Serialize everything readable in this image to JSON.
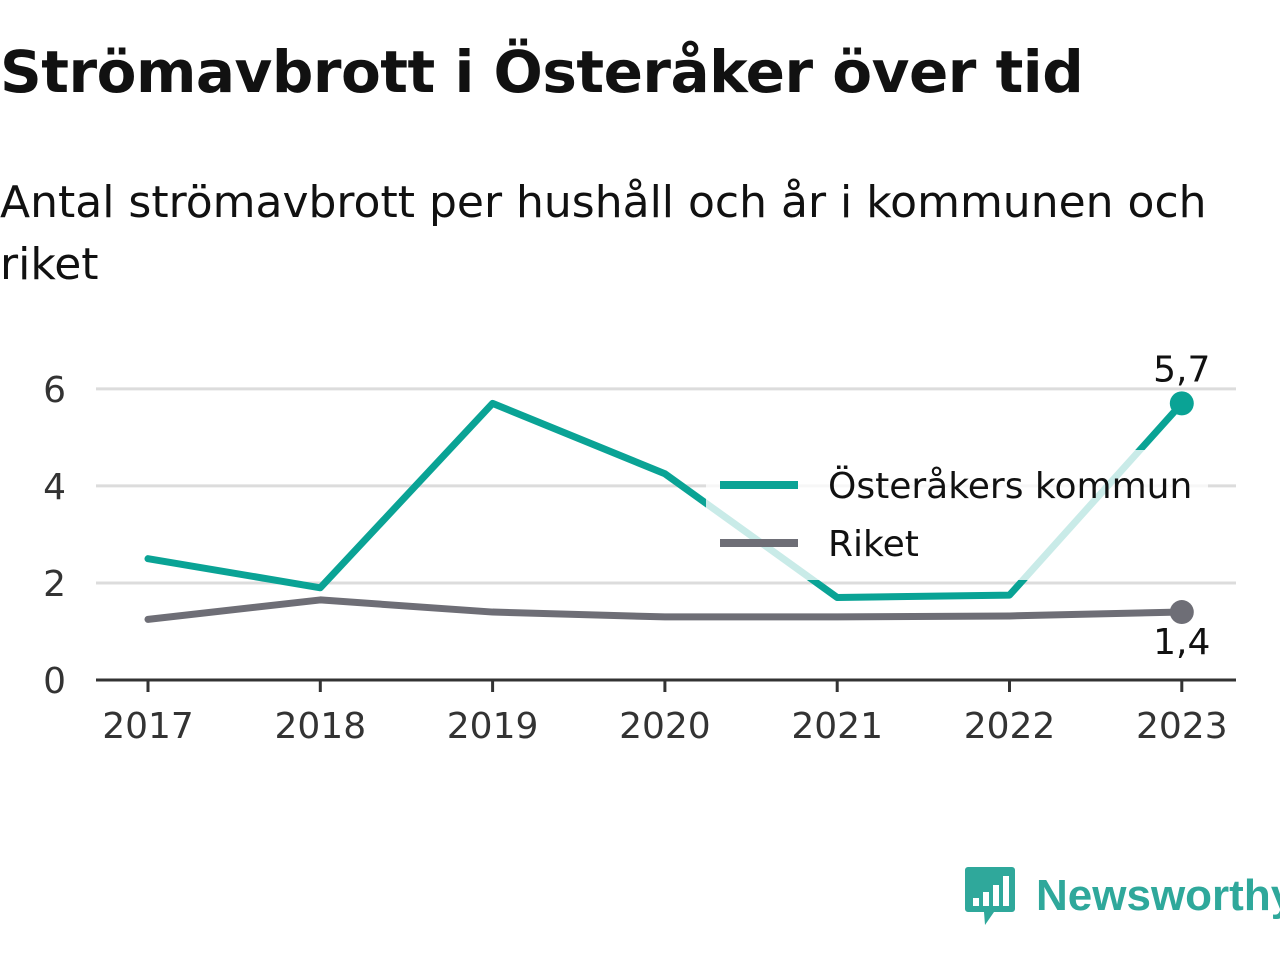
{
  "title": "Strömavbrott i Österåker över tid",
  "subtitle": "Antal strömavbrott per hushåll och år i kommunen och riket",
  "logo": {
    "text": "Newsworthy",
    "icon": "bar-chart-speech-bubble-icon",
    "color": "#2fa89b"
  },
  "chart_data": {
    "type": "line",
    "x": [
      "2017",
      "2018",
      "2019",
      "2020",
      "2021",
      "2022",
      "2023"
    ],
    "ylim": [
      0,
      6.8
    ],
    "yticks": [
      "0",
      "2",
      "4",
      "6"
    ],
    "ytick_values": [
      0,
      2,
      4,
      6
    ],
    "grid": true,
    "legend_position": "right",
    "series": [
      {
        "name": "Österåkers kommun",
        "color": "#0aa395",
        "values": [
          2.5,
          1.9,
          5.7,
          4.25,
          1.7,
          1.75,
          5.7
        ],
        "end_label": "5,7"
      },
      {
        "name": "Riket",
        "color": "#6e6e76",
        "values": [
          1.25,
          1.65,
          1.4,
          1.3,
          1.3,
          1.32,
          1.4
        ],
        "end_label": "1,4"
      }
    ]
  }
}
